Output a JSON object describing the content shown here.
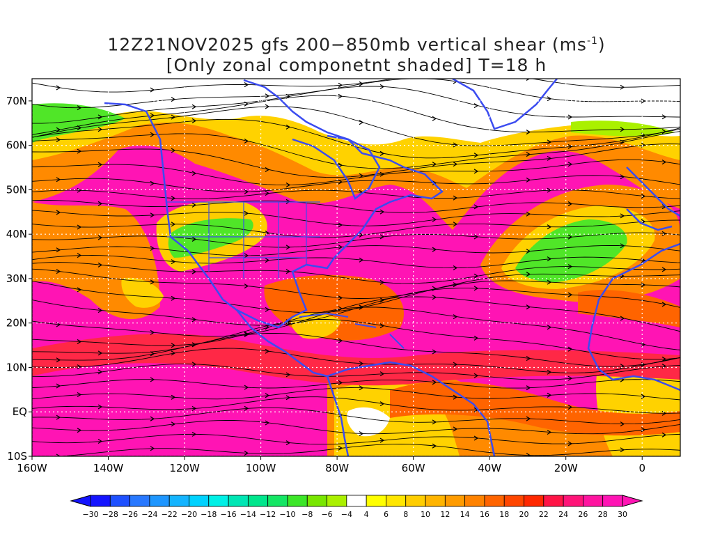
{
  "title": {
    "line1_prefix": "12Z21NOV2025 gfs 200−850mb vertical shear (ms",
    "line1_sup": "-1",
    "line1_suffix": ")",
    "line2": "[Only zonal componetnt shaded] T=18 h"
  },
  "map": {
    "lon_range": [
      -160,
      10
    ],
    "lat_range": [
      -10,
      75
    ],
    "lon_ticks": [
      {
        "value": -160,
        "label": "160W"
      },
      {
        "value": -140,
        "label": "140W"
      },
      {
        "value": -120,
        "label": "120W"
      },
      {
        "value": -100,
        "label": "100W"
      },
      {
        "value": -80,
        "label": "80W"
      },
      {
        "value": -60,
        "label": "60W"
      },
      {
        "value": -40,
        "label": "40W"
      },
      {
        "value": -20,
        "label": "20W"
      },
      {
        "value": 0,
        "label": "0"
      }
    ],
    "lat_ticks": [
      {
        "value": 70,
        "label": "70N"
      },
      {
        "value": 60,
        "label": "60N"
      },
      {
        "value": 50,
        "label": "50N"
      },
      {
        "value": 40,
        "label": "40N"
      },
      {
        "value": 30,
        "label": "30N"
      },
      {
        "value": 20,
        "label": "20N"
      },
      {
        "value": 10,
        "label": "10N"
      },
      {
        "value": 0,
        "label": "EQ"
      },
      {
        "value": -10,
        "label": "10S"
      }
    ],
    "coastline_color": "#3b4cf0",
    "streamline_color": "#000000",
    "contour_color": "#a020c0"
  },
  "colorbar": {
    "labels": [
      "−30",
      "−28",
      "−26",
      "−24",
      "−22",
      "−20",
      "−18",
      "−16",
      "−14",
      "−12",
      "−10",
      "−8",
      "−6",
      "−4",
      "4",
      "6",
      "8",
      "10",
      "12",
      "14",
      "16",
      "18",
      "20",
      "22",
      "24",
      "26",
      "28",
      "30"
    ],
    "colors": [
      "#1414ff",
      "#1e50ff",
      "#2878ff",
      "#1e96ff",
      "#14b4ff",
      "#00d2ff",
      "#00f0e6",
      "#00e6b4",
      "#00e68c",
      "#14e664",
      "#3ce628",
      "#78e600",
      "#aaf000",
      "#ffffff",
      "#ffff00",
      "#ffe600",
      "#ffcd00",
      "#ffb400",
      "#ff9b00",
      "#ff8200",
      "#ff6400",
      "#ff4600",
      "#ff2800",
      "#ff1446",
      "#ff1478",
      "#ff14a0",
      "#ff14b4"
    ]
  }
}
